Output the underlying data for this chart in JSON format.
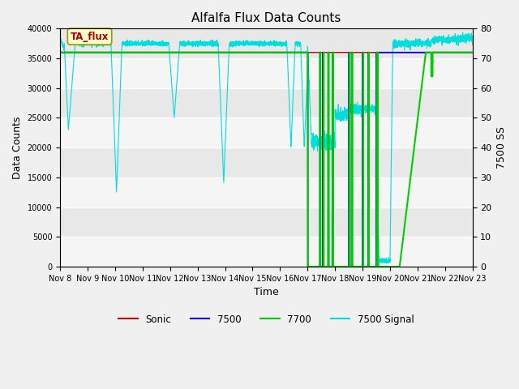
{
  "title": "Alfalfa Flux Data Counts",
  "xlabel": "Time",
  "ylabel_left": "Data Counts",
  "ylabel_right": "7500 SS",
  "annotation": "TA_flux",
  "ylim_left": [
    0,
    40000
  ],
  "ylim_right": [
    0,
    80
  ],
  "yticks_left": [
    0,
    5000,
    10000,
    15000,
    20000,
    25000,
    30000,
    35000,
    40000
  ],
  "yticks_right": [
    0,
    10,
    20,
    30,
    40,
    50,
    60,
    70,
    80
  ],
  "xtick_labels": [
    "Nov 8",
    "Nov 9",
    "Nov 10",
    "Nov 11",
    "Nov 12",
    "Nov 13",
    "Nov 14",
    "Nov 15",
    "Nov 16",
    "Nov 17",
    "Nov 18",
    "Nov 19",
    "Nov 20",
    "Nov 21",
    "Nov 22",
    "Nov 23"
  ],
  "colors": {
    "sonic": "#cc0000",
    "line7500": "#0000dd",
    "line7700": "#00cc00",
    "signal7500": "#00dddd",
    "bg_dark": "#d8d8d8",
    "bg_light": "#ececec"
  },
  "legend_labels": [
    "Sonic",
    "7500",
    "7700",
    "7500 Signal"
  ],
  "flat_level": 36000,
  "signal_base": 37500
}
